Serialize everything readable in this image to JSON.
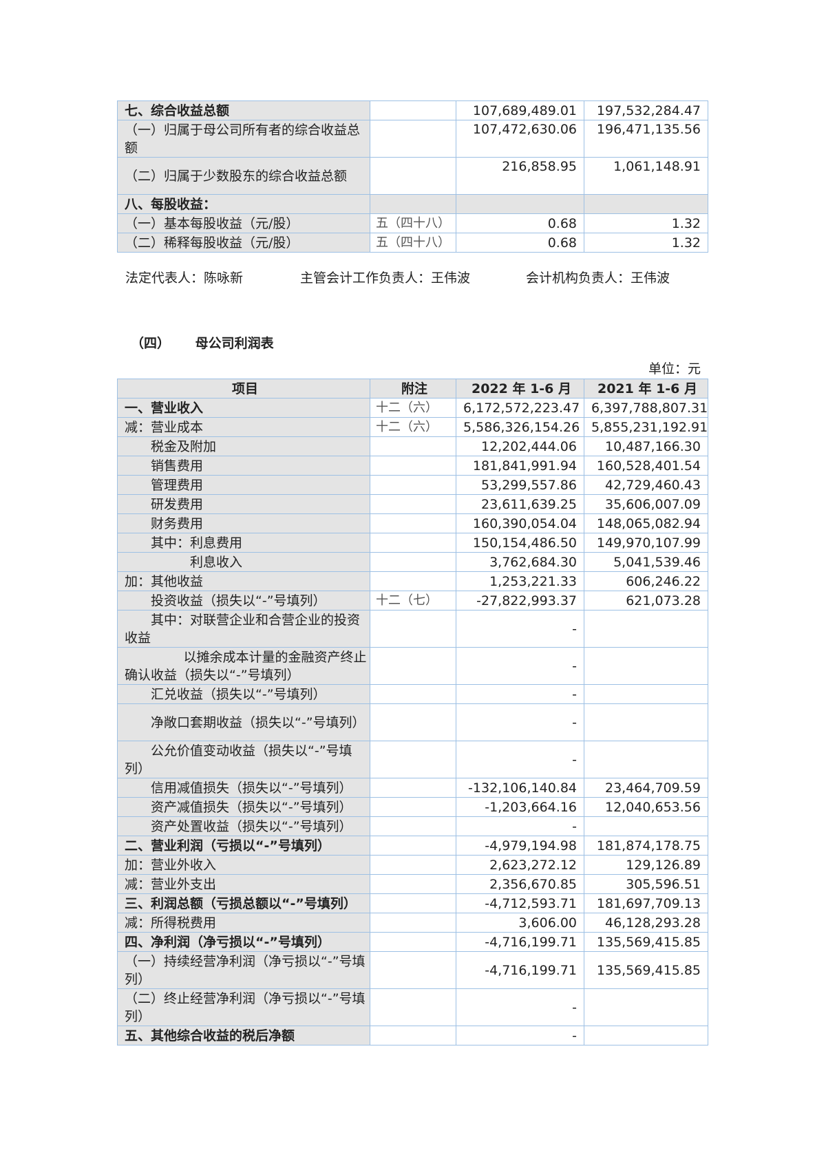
{
  "top_table": {
    "rows": [
      {
        "label": "七、综合收益总额",
        "note": "",
        "v2022": "107,689,489.01",
        "v2021": "197,532,284.47",
        "bold": true,
        "double": false,
        "indent": 0
      },
      {
        "label": "（一）归属于母公司所有者的综合收益总额",
        "note": "",
        "v2022": "107,472,630.06",
        "v2021": "196,471,135.56",
        "bold": false,
        "double": true,
        "indent": 0,
        "valign": "top"
      },
      {
        "label": "（二）归属于少数股东的综合收益总额",
        "note": "",
        "v2022": "216,858.95",
        "v2021": "1,061,148.91",
        "bold": false,
        "double": true,
        "indent": 0,
        "valign": "top"
      },
      {
        "label": "八、每股收益：",
        "note": "",
        "v2022": "",
        "v2021": "",
        "bold": true,
        "double": false,
        "indent": 0,
        "gray": true
      },
      {
        "label": "（一）基本每股收益（元/股）",
        "note": "五（四十八）",
        "v2022": "0.68",
        "v2021": "1.32",
        "bold": false,
        "double": false,
        "indent": 0
      },
      {
        "label": "（二）稀释每股收益（元/股）",
        "note": "五（四十八）",
        "v2022": "0.68",
        "v2021": "1.32",
        "bold": false,
        "double": false,
        "indent": 0
      }
    ]
  },
  "signatures": {
    "legal_rep": "法定代表人：陈咏新",
    "accounting_head": "主管会计工作负责人：王伟波",
    "accounting_org_head": "会计机构负责人：王伟波"
  },
  "section": {
    "number": "（四）",
    "title": "母公司利润表"
  },
  "unit": "单位：元",
  "income_table": {
    "headers": [
      "项目",
      "附注",
      "2022 年 1-6 月",
      "2021 年 1-6 月"
    ],
    "rows": [
      {
        "label": "一、营业收入",
        "note": "十二（六）",
        "v2022": "6,172,572,223.47",
        "v2021": "6,397,788,807.31",
        "bold": true,
        "double": false,
        "indent": 0
      },
      {
        "label": "减：营业成本",
        "note": "十二（六）",
        "v2022": "5,586,326,154.26",
        "v2021": "5,855,231,192.91",
        "bold": false,
        "double": false,
        "indent": 0
      },
      {
        "label": "税金及附加",
        "note": "",
        "v2022": "12,202,444.06",
        "v2021": "10,487,166.30",
        "bold": false,
        "double": false,
        "indent": 2
      },
      {
        "label": "销售费用",
        "note": "",
        "v2022": "181,841,991.94",
        "v2021": "160,528,401.54",
        "bold": false,
        "double": false,
        "indent": 2
      },
      {
        "label": "管理费用",
        "note": "",
        "v2022": "53,299,557.86",
        "v2021": "42,729,460.43",
        "bold": false,
        "double": false,
        "indent": 2
      },
      {
        "label": "研发费用",
        "note": "",
        "v2022": "23,611,639.25",
        "v2021": "35,606,007.09",
        "bold": false,
        "double": false,
        "indent": 2
      },
      {
        "label": "财务费用",
        "note": "",
        "v2022": "160,390,054.04",
        "v2021": "148,065,082.94",
        "bold": false,
        "double": false,
        "indent": 2
      },
      {
        "label": "其中：利息费用",
        "note": "",
        "v2022": "150,154,486.50",
        "v2021": "149,970,107.99",
        "bold": false,
        "double": false,
        "indent": 2
      },
      {
        "label": "利息收入",
        "note": "",
        "v2022": "3,762,684.30",
        "v2021": "5,041,539.46",
        "bold": false,
        "double": false,
        "indent": 5
      },
      {
        "label": "加：其他收益",
        "note": "",
        "v2022": "1,253,221.33",
        "v2021": "606,246.22",
        "bold": false,
        "double": false,
        "indent": 0
      },
      {
        "label": "投资收益（损失以“-”号填列）",
        "note": "十二（七）",
        "v2022": "-27,822,993.37",
        "v2021": "621,073.28",
        "bold": false,
        "double": false,
        "indent": 2
      },
      {
        "label": "其中：对联营企业和合营企业的投资收益",
        "note": "",
        "v2022": "-",
        "v2021": "",
        "bold": false,
        "double": true,
        "indent": 2
      },
      {
        "label": "以摊余成本计量的金融资产终止确认收益（损失以“-”号填列）",
        "note": "",
        "v2022": "-",
        "v2021": "",
        "bold": false,
        "double": true,
        "indent": 4.5
      },
      {
        "label": "汇兑收益（损失以“-”号填列）",
        "note": "",
        "v2022": "-",
        "v2021": "",
        "bold": false,
        "double": false,
        "indent": 2
      },
      {
        "label": "净敞口套期收益（损失以“-”号填列）",
        "note": "",
        "v2022": "-",
        "v2021": "",
        "bold": false,
        "double": true,
        "indent": 2
      },
      {
        "label": "公允价值变动收益（损失以“-”号填列）",
        "note": "",
        "v2022": "-",
        "v2021": "",
        "bold": false,
        "double": true,
        "indent": 2
      },
      {
        "label": "信用减值损失（损失以“-”号填列）",
        "note": "",
        "v2022": "-132,106,140.84",
        "v2021": "23,464,709.59",
        "bold": false,
        "double": false,
        "indent": 2
      },
      {
        "label": "资产减值损失（损失以“-”号填列）",
        "note": "",
        "v2022": "-1,203,664.16",
        "v2021": "12,040,653.56",
        "bold": false,
        "double": false,
        "indent": 2
      },
      {
        "label": "资产处置收益（损失以“-”号填列）",
        "note": "",
        "v2022": "-",
        "v2021": "",
        "bold": false,
        "double": false,
        "indent": 2
      },
      {
        "label": "二、营业利润（亏损以“-”号填列）",
        "note": "",
        "v2022": "-4,979,194.98",
        "v2021": "181,874,178.75",
        "bold": true,
        "double": false,
        "indent": 0
      },
      {
        "label": "加：营业外收入",
        "note": "",
        "v2022": "2,623,272.12",
        "v2021": "129,126.89",
        "bold": false,
        "double": false,
        "indent": 0
      },
      {
        "label": "减：营业外支出",
        "note": "",
        "v2022": "2,356,670.85",
        "v2021": "305,596.51",
        "bold": false,
        "double": false,
        "indent": 0
      },
      {
        "label": "三、利润总额（亏损总额以“-”号填列）",
        "note": "",
        "v2022": "-4,712,593.71",
        "v2021": "181,697,709.13",
        "bold": true,
        "double": false,
        "indent": 0
      },
      {
        "label": "减：所得税费用",
        "note": "",
        "v2022": "3,606.00",
        "v2021": "46,128,293.28",
        "bold": false,
        "double": false,
        "indent": 0
      },
      {
        "label": "四、净利润（净亏损以“-”号填列）",
        "note": "",
        "v2022": "-4,716,199.71",
        "v2021": "135,569,415.85",
        "bold": true,
        "double": false,
        "indent": 0
      },
      {
        "label": "（一）持续经营净利润（净亏损以“-”号填列）",
        "note": "",
        "v2022": "-4,716,199.71",
        "v2021": "135,569,415.85",
        "bold": false,
        "double": true,
        "indent": 0
      },
      {
        "label": "（二）终止经营净利润（净亏损以“-”号填列）",
        "note": "",
        "v2022": "-",
        "v2021": "",
        "bold": false,
        "double": true,
        "indent": 0
      },
      {
        "label": "五、其他综合收益的税后净额",
        "note": "",
        "v2022": "-",
        "v2021": "",
        "bold": true,
        "double": false,
        "indent": 0
      }
    ]
  }
}
